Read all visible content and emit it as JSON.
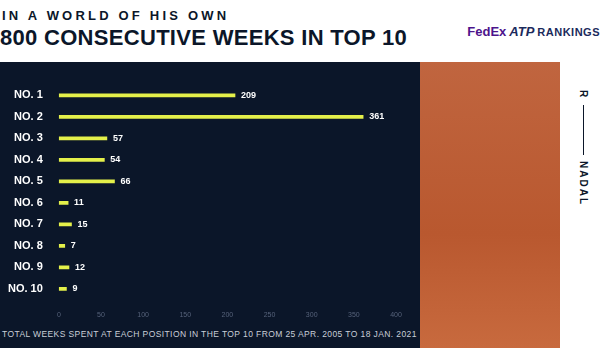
{
  "chart_data": {
    "type": "bar",
    "orientation": "horizontal",
    "subtitle": "IN A WORLD OF HIS OWN",
    "title": "800 CONSECUTIVE WEEKS IN TOP 10",
    "xlabel": "TOTAL WEEKS SPENT AT EACH POSITION IN THE TOP 10 FROM 25 APR. 2005 TO 18 JAN. 2021",
    "annotations": [
      "FedEx",
      "ATP",
      "RANKINGS",
      "R",
      "NADAL"
    ],
    "categories": [
      "NO. 1",
      "NO. 2",
      "NO. 3",
      "NO. 4",
      "NO. 5",
      "NO. 6",
      "NO. 7",
      "NO. 8",
      "NO. 9",
      "NO. 10"
    ],
    "values": [
      209,
      361,
      57,
      54,
      66,
      11,
      15,
      7,
      12,
      9
    ],
    "color": "#e4f04a",
    "xlim": [
      0,
      400
    ],
    "xticks": [
      0,
      50,
      100,
      150,
      200,
      250,
      300,
      350,
      400
    ],
    "grid": false,
    "data_labels": true
  }
}
